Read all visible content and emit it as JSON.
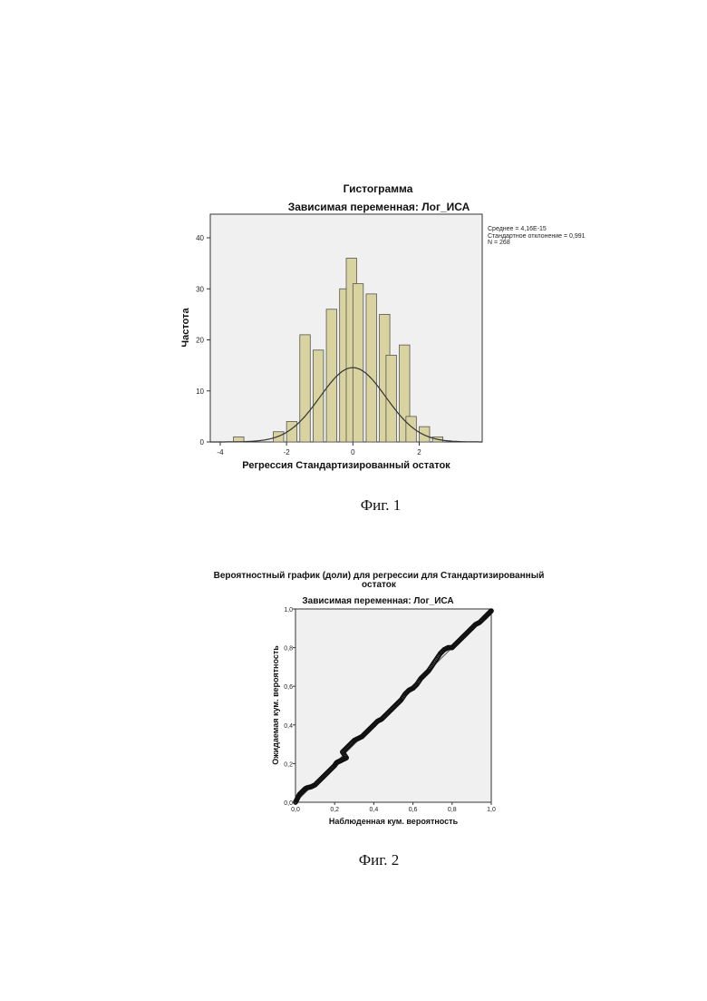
{
  "figures": [
    {
      "caption": "Фиг. 1",
      "title": "Гистограмма",
      "subtitle": "Зависимая переменная: Лог_ИСА",
      "stats": [
        "Среднее = 4,16E-15",
        "Стандартное отклонение = 0,991",
        "N = 268"
      ]
    },
    {
      "caption": "Фиг. 2",
      "title_line1": "Вероятностный график (доли) для регрессии для Стандартизированный",
      "title_line2": "остаток",
      "subtitle": "Зависимая переменная: Лог_ИСА"
    }
  ],
  "chart_data": [
    {
      "type": "bar",
      "subtype": "histogram",
      "title": "Гистограмма",
      "subtitle": "Зависимая переменная: Лог_ИСА",
      "xlabel": "Регрессия Стандартизированный остаток",
      "ylabel": "Частота",
      "xlim": [
        -4.3,
        3.9
      ],
      "ylim": [
        0,
        40
      ],
      "xticks": [
        -4,
        -2,
        0,
        2
      ],
      "xtick_labels": [
        "-4",
        "-2",
        "0",
        "2"
      ],
      "yticks": [
        0,
        10,
        20,
        30,
        40
      ],
      "ytick_labels": [
        "0",
        "10",
        "20",
        "30",
        "40"
      ],
      "bin_width": 0.4,
      "bin_starts": [
        -3.6,
        -2.4,
        -2.0,
        -1.6,
        -1.2,
        -0.8,
        -0.4,
        0.0,
        0.4,
        0.8,
        1.2,
        1.6,
        2.0,
        2.4
      ],
      "values": [
        1,
        2,
        4,
        21,
        18,
        26,
        30,
        36,
        31,
        29,
        25,
        17,
        19,
        5,
        3,
        1
      ],
      "bins": [
        {
          "start": -3.6,
          "value": 1
        },
        {
          "start": -2.4,
          "value": 2
        },
        {
          "start": -2.0,
          "value": 4
        },
        {
          "start": -1.6,
          "value": 21
        },
        {
          "start": -1.2,
          "value": 18
        },
        {
          "start": -0.8,
          "value": 26
        },
        {
          "start": -0.4,
          "value": 30
        },
        {
          "start": -0.2,
          "value": 36
        },
        {
          "start": 0.0,
          "value": 31
        },
        {
          "start": 0.4,
          "value": 29
        },
        {
          "start": 0.8,
          "value": 25
        },
        {
          "start": 1.0,
          "value": 17
        },
        {
          "start": 1.4,
          "value": 19
        },
        {
          "start": 1.6,
          "value": 5
        },
        {
          "start": 2.0,
          "value": 3
        },
        {
          "start": 2.4,
          "value": 1
        }
      ],
      "normal_curve": {
        "mean": 0.0,
        "sd": 0.991,
        "n": 268
      },
      "bar_color": "#d9d3a0",
      "plot_bg": "#f0f0f0",
      "grid": false
    },
    {
      "type": "scatter",
      "subtype": "P-P plot",
      "title": "Вероятностный график (доли) для регрессии для Стандартизированный остаток",
      "subtitle": "Зависимая переменная: Лог_ИСА",
      "xlabel": "Наблюденная кум. вероятность",
      "ylabel": "Ожидаемая кум. вероятность",
      "xlim": [
        0,
        1
      ],
      "ylim": [
        0,
        1
      ],
      "xticks": [
        0,
        0.2,
        0.4,
        0.6,
        0.8,
        1.0
      ],
      "xtick_labels": [
        "0,0",
        "0,2",
        "0,4",
        "0,6",
        "0,8",
        "1,0"
      ],
      "yticks": [
        0,
        0.2,
        0.4,
        0.6,
        0.8,
        1.0
      ],
      "ytick_labels": [
        "0,0",
        "0,2",
        "0,4",
        "0,6",
        "0,8",
        "1,0"
      ],
      "reference_line": [
        [
          0,
          0
        ],
        [
          1,
          1
        ]
      ],
      "points": [
        [
          0.0,
          0.0
        ],
        [
          0.01,
          0.02
        ],
        [
          0.02,
          0.04
        ],
        [
          0.03,
          0.05
        ],
        [
          0.04,
          0.06
        ],
        [
          0.05,
          0.07
        ],
        [
          0.06,
          0.075
        ],
        [
          0.08,
          0.08
        ],
        [
          0.1,
          0.09
        ],
        [
          0.12,
          0.11
        ],
        [
          0.14,
          0.13
        ],
        [
          0.16,
          0.15
        ],
        [
          0.18,
          0.17
        ],
        [
          0.2,
          0.19
        ],
        [
          0.21,
          0.205
        ],
        [
          0.22,
          0.21
        ],
        [
          0.23,
          0.215
        ],
        [
          0.24,
          0.22
        ],
        [
          0.25,
          0.225
        ],
        [
          0.26,
          0.23
        ],
        [
          0.24,
          0.26
        ],
        [
          0.26,
          0.28
        ],
        [
          0.28,
          0.3
        ],
        [
          0.3,
          0.32
        ],
        [
          0.32,
          0.33
        ],
        [
          0.34,
          0.34
        ],
        [
          0.36,
          0.36
        ],
        [
          0.38,
          0.38
        ],
        [
          0.4,
          0.4
        ],
        [
          0.42,
          0.42
        ],
        [
          0.44,
          0.43
        ],
        [
          0.46,
          0.45
        ],
        [
          0.48,
          0.47
        ],
        [
          0.5,
          0.49
        ],
        [
          0.52,
          0.51
        ],
        [
          0.54,
          0.53
        ],
        [
          0.56,
          0.56
        ],
        [
          0.58,
          0.58
        ],
        [
          0.6,
          0.59
        ],
        [
          0.62,
          0.61
        ],
        [
          0.64,
          0.64
        ],
        [
          0.66,
          0.66
        ],
        [
          0.68,
          0.68
        ],
        [
          0.7,
          0.71
        ],
        [
          0.72,
          0.74
        ],
        [
          0.74,
          0.77
        ],
        [
          0.76,
          0.79
        ],
        [
          0.78,
          0.8
        ],
        [
          0.8,
          0.8
        ],
        [
          0.82,
          0.82
        ],
        [
          0.84,
          0.84
        ],
        [
          0.86,
          0.86
        ],
        [
          0.88,
          0.88
        ],
        [
          0.9,
          0.9
        ],
        [
          0.92,
          0.92
        ],
        [
          0.94,
          0.93
        ],
        [
          0.96,
          0.95
        ],
        [
          0.97,
          0.96
        ],
        [
          0.98,
          0.97
        ],
        [
          0.99,
          0.98
        ],
        [
          1.0,
          0.99
        ]
      ],
      "marker": "circle",
      "plot_bg": "#f0f0f0",
      "grid": false
    }
  ]
}
